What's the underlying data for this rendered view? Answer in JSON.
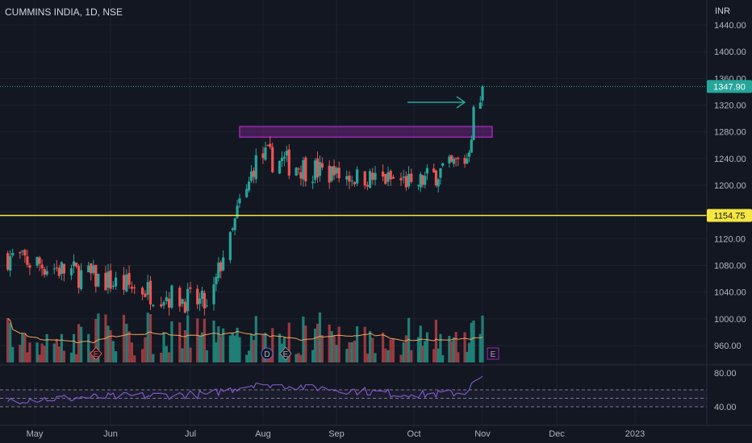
{
  "header": {
    "symbol_title": "CUMMINS INDIA, 1D, NSE",
    "currency": "INR"
  },
  "colors": {
    "background": "#131722",
    "up": "#26a69a",
    "down": "#ef5350",
    "vol_up": "#1f7f76",
    "vol_down": "#9a3a3f",
    "ma": "#f7a35c",
    "rsi": "#7e57c2",
    "support_line": "#f5e642",
    "resistance_zone": "#9c27b0",
    "axis_text": "#b2b5be"
  },
  "chart_data": [
    {
      "type": "candlestick",
      "title": "CUMMINS INDIA, 1D, NSE",
      "y_axis_label": "INR",
      "ylim": [
        940,
        1460
      ],
      "y_ticks": [
        "1440.00",
        "1400.00",
        "1360.00",
        "1320.00",
        "1280.00",
        "1240.00",
        "1200.00",
        "1160.00",
        "1120.00",
        "1080.00",
        "1040.00",
        "1000.00",
        "960.00"
      ],
      "x_ticks": [
        "May",
        "Jun",
        "Jul",
        "Aug",
        "Sep",
        "Oct",
        "Nov",
        "Dec",
        "2023"
      ],
      "last_price_label": "1347.90",
      "last_price": 1347.9,
      "horizontal_line": {
        "value": 1154.75,
        "label": "1154.75"
      },
      "resistance_zone": {
        "from": 1272,
        "to": 1282
      },
      "events": [
        {
          "label": "E",
          "month": "May"
        },
        {
          "label": "D",
          "month": "Aug"
        },
        {
          "label": "E",
          "month": "Aug"
        },
        {
          "label": "E",
          "month": "Nov"
        }
      ],
      "segments": [
        {
          "from": "2022-04-20",
          "to": "2022-07-08",
          "start": 1095,
          "end": 1020,
          "low": 960,
          "high": 1105
        },
        {
          "from": "2022-07-11",
          "to": "2022-07-29",
          "start": 1025,
          "end": 1245,
          "low": 1010,
          "high": 1255
        },
        {
          "from": "2022-08-01",
          "to": "2022-08-31",
          "start": 1245,
          "end": 1215,
          "low": 1105,
          "high": 1290
        },
        {
          "from": "2022-09-01",
          "to": "2022-09-30",
          "start": 1215,
          "end": 1205,
          "low": 1185,
          "high": 1275
        },
        {
          "from": "2022-10-03",
          "to": "2022-10-25",
          "start": 1200,
          "end": 1240,
          "low": 1150,
          "high": 1250
        },
        {
          "from": "2022-10-26",
          "to": "2022-11-01",
          "start": 1240,
          "end": 1347.9,
          "low": 1235,
          "high": 1350
        }
      ],
      "volume_moving_average": true
    },
    {
      "type": "line",
      "name": "RSI",
      "ylim": [
        20,
        90
      ],
      "y_ticks": [
        "80.00",
        "40.00"
      ],
      "bands": [
        60,
        50,
        40
      ],
      "segments": [
        {
          "from": "2022-04-20",
          "to": "2022-07-08",
          "start": 48,
          "end": 55,
          "low": 35,
          "high": 60
        },
        {
          "from": "2022-07-11",
          "to": "2022-07-29",
          "start": 55,
          "end": 68,
          "low": 52,
          "high": 74
        },
        {
          "from": "2022-08-01",
          "to": "2022-09-30",
          "start": 68,
          "end": 54,
          "low": 50,
          "high": 66
        },
        {
          "from": "2022-10-03",
          "to": "2022-10-25",
          "start": 54,
          "end": 57,
          "low": 46,
          "high": 60
        },
        {
          "from": "2022-10-26",
          "to": "2022-11-01",
          "start": 57,
          "end": 76,
          "low": 57,
          "high": 76
        }
      ]
    }
  ]
}
